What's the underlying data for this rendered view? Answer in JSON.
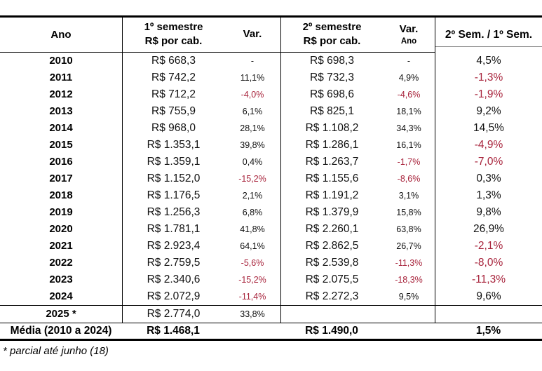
{
  "chart_data": {
    "type": "table",
    "columns": [
      "Ano",
      "1º semestre R$ por cab.",
      "Var.",
      "2º semestre R$ por cab.",
      "Var. Ano",
      "2º Sem. / 1º Sem."
    ],
    "rows": [
      {
        "ano": "2010",
        "s1": "R$ 668,3",
        "v1": "-",
        "s2": "R$ 698,3",
        "v2": "-",
        "ratio": "4,5%"
      },
      {
        "ano": "2011",
        "s1": "R$ 742,2",
        "v1": "11,1%",
        "s2": "R$ 732,3",
        "v2": "4,9%",
        "ratio": "-1,3%"
      },
      {
        "ano": "2012",
        "s1": "R$ 712,2",
        "v1": "-4,0%",
        "s2": "R$ 698,6",
        "v2": "-4,6%",
        "ratio": "-1,9%"
      },
      {
        "ano": "2013",
        "s1": "R$ 755,9",
        "v1": "6,1%",
        "s2": "R$ 825,1",
        "v2": "18,1%",
        "ratio": "9,2%"
      },
      {
        "ano": "2014",
        "s1": "R$ 968,0",
        "v1": "28,1%",
        "s2": "R$ 1.108,2",
        "v2": "34,3%",
        "ratio": "14,5%"
      },
      {
        "ano": "2015",
        "s1": "R$ 1.353,1",
        "v1": "39,8%",
        "s2": "R$ 1.286,1",
        "v2": "16,1%",
        "ratio": "-4,9%"
      },
      {
        "ano": "2016",
        "s1": "R$ 1.359,1",
        "v1": "0,4%",
        "s2": "R$ 1.263,7",
        "v2": "-1,7%",
        "ratio": "-7,0%"
      },
      {
        "ano": "2017",
        "s1": "R$ 1.152,0",
        "v1": "-15,2%",
        "s2": "R$ 1.155,6",
        "v2": "-8,6%",
        "ratio": "0,3%"
      },
      {
        "ano": "2018",
        "s1": "R$ 1.176,5",
        "v1": "2,1%",
        "s2": "R$ 1.191,2",
        "v2": "3,1%",
        "ratio": "1,3%"
      },
      {
        "ano": "2019",
        "s1": "R$ 1.256,3",
        "v1": "6,8%",
        "s2": "R$ 1.379,9",
        "v2": "15,8%",
        "ratio": "9,8%"
      },
      {
        "ano": "2020",
        "s1": "R$ 1.781,1",
        "v1": "41,8%",
        "s2": "R$ 2.260,1",
        "v2": "63,8%",
        "ratio": "26,9%"
      },
      {
        "ano": "2021",
        "s1": "R$ 2.923,4",
        "v1": "64,1%",
        "s2": "R$ 2.862,5",
        "v2": "26,7%",
        "ratio": "-2,1%"
      },
      {
        "ano": "2022",
        "s1": "R$ 2.759,5",
        "v1": "-5,6%",
        "s2": "R$ 2.539,8",
        "v2": "-11,3%",
        "ratio": "-8,0%"
      },
      {
        "ano": "2023",
        "s1": "R$ 2.340,6",
        "v1": "-15,2%",
        "s2": "R$ 2.075,5",
        "v2": "-18,3%",
        "ratio": "-11,3%"
      },
      {
        "ano": "2024",
        "s1": "R$ 2.072,9",
        "v1": "-11,4%",
        "s2": "R$ 2.272,3",
        "v2": "9,5%",
        "ratio": "9,6%"
      }
    ],
    "partial_row": {
      "ano": "2025 *",
      "s1": "R$ 2.774,0",
      "v1": "33,8%",
      "s2": "",
      "v2": "",
      "ratio": ""
    },
    "summary": {
      "label": "Média (2010 a 2024)",
      "s1": "R$ 1.468,1",
      "s2": "R$ 1.490,0",
      "ratio": "1,5%"
    },
    "footnote": "* parcial até junho (18)"
  },
  "header": {
    "ano": "Ano",
    "sem1_line1": "1º semestre",
    "sem1_line2": "R$ por cab.",
    "var1": "Var.",
    "sem2_line1": "2º semestre",
    "sem2_line2": "R$ por cab.",
    "var2_line1": "Var.",
    "var2_line2": "Ano",
    "ratio": "2º Sem. / 1º Sem."
  },
  "colors": {
    "negative_text": "#a8243c",
    "border": "#000000",
    "background": "#ffffff"
  }
}
